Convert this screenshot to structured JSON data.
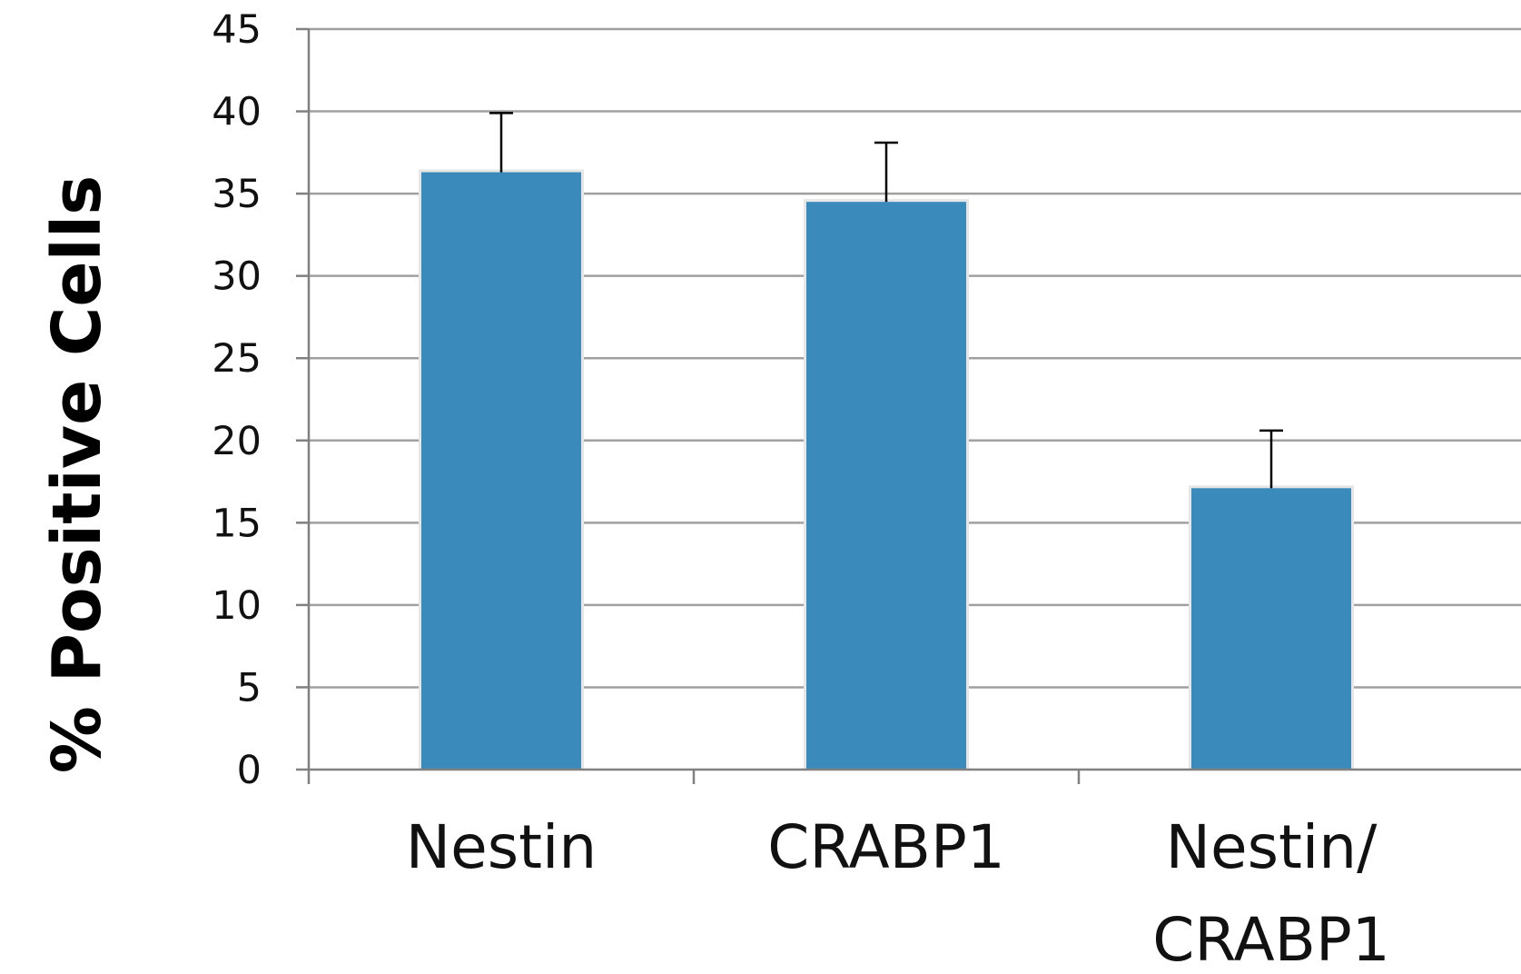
{
  "chart_data": {
    "type": "bar",
    "categories": [
      [
        "Nestin"
      ],
      [
        "CRABP1"
      ],
      [
        "Nestin/",
        "CRABP1"
      ]
    ],
    "values": [
      36.3,
      34.5,
      17.1
    ],
    "error_plus": [
      3.6,
      3.6,
      3.5
    ],
    "ylabel": "% Positive Cells",
    "xlabel": "",
    "title": "",
    "ylim": [
      0,
      45
    ],
    "yticks": [
      0,
      5,
      10,
      15,
      20,
      25,
      30,
      35,
      40,
      45
    ],
    "grid": true,
    "bar_color": "#3a8bbb",
    "grid_color": "#a0a0a0",
    "error_bar_color": "#000000"
  }
}
